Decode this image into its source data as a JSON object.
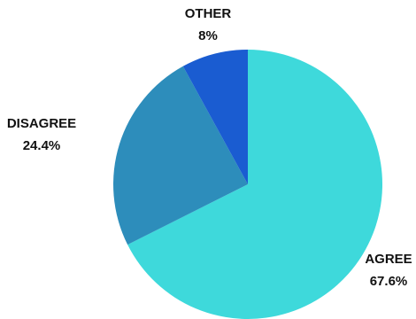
{
  "chart_data": {
    "type": "pie",
    "title": "",
    "slices": [
      {
        "label": "AGREE",
        "value": 67.6,
        "value_label": "67.6%",
        "color": "#3ED9DB"
      },
      {
        "label": "DISAGREE",
        "value": 24.4,
        "value_label": "24.4%",
        "color": "#2D8DBB"
      },
      {
        "label": "OTHER",
        "value": 8,
        "value_label": "8%",
        "color": "#1A5CD1"
      }
    ],
    "start_angle": "12 o'clock",
    "direction": "clockwise",
    "legend": "none"
  }
}
